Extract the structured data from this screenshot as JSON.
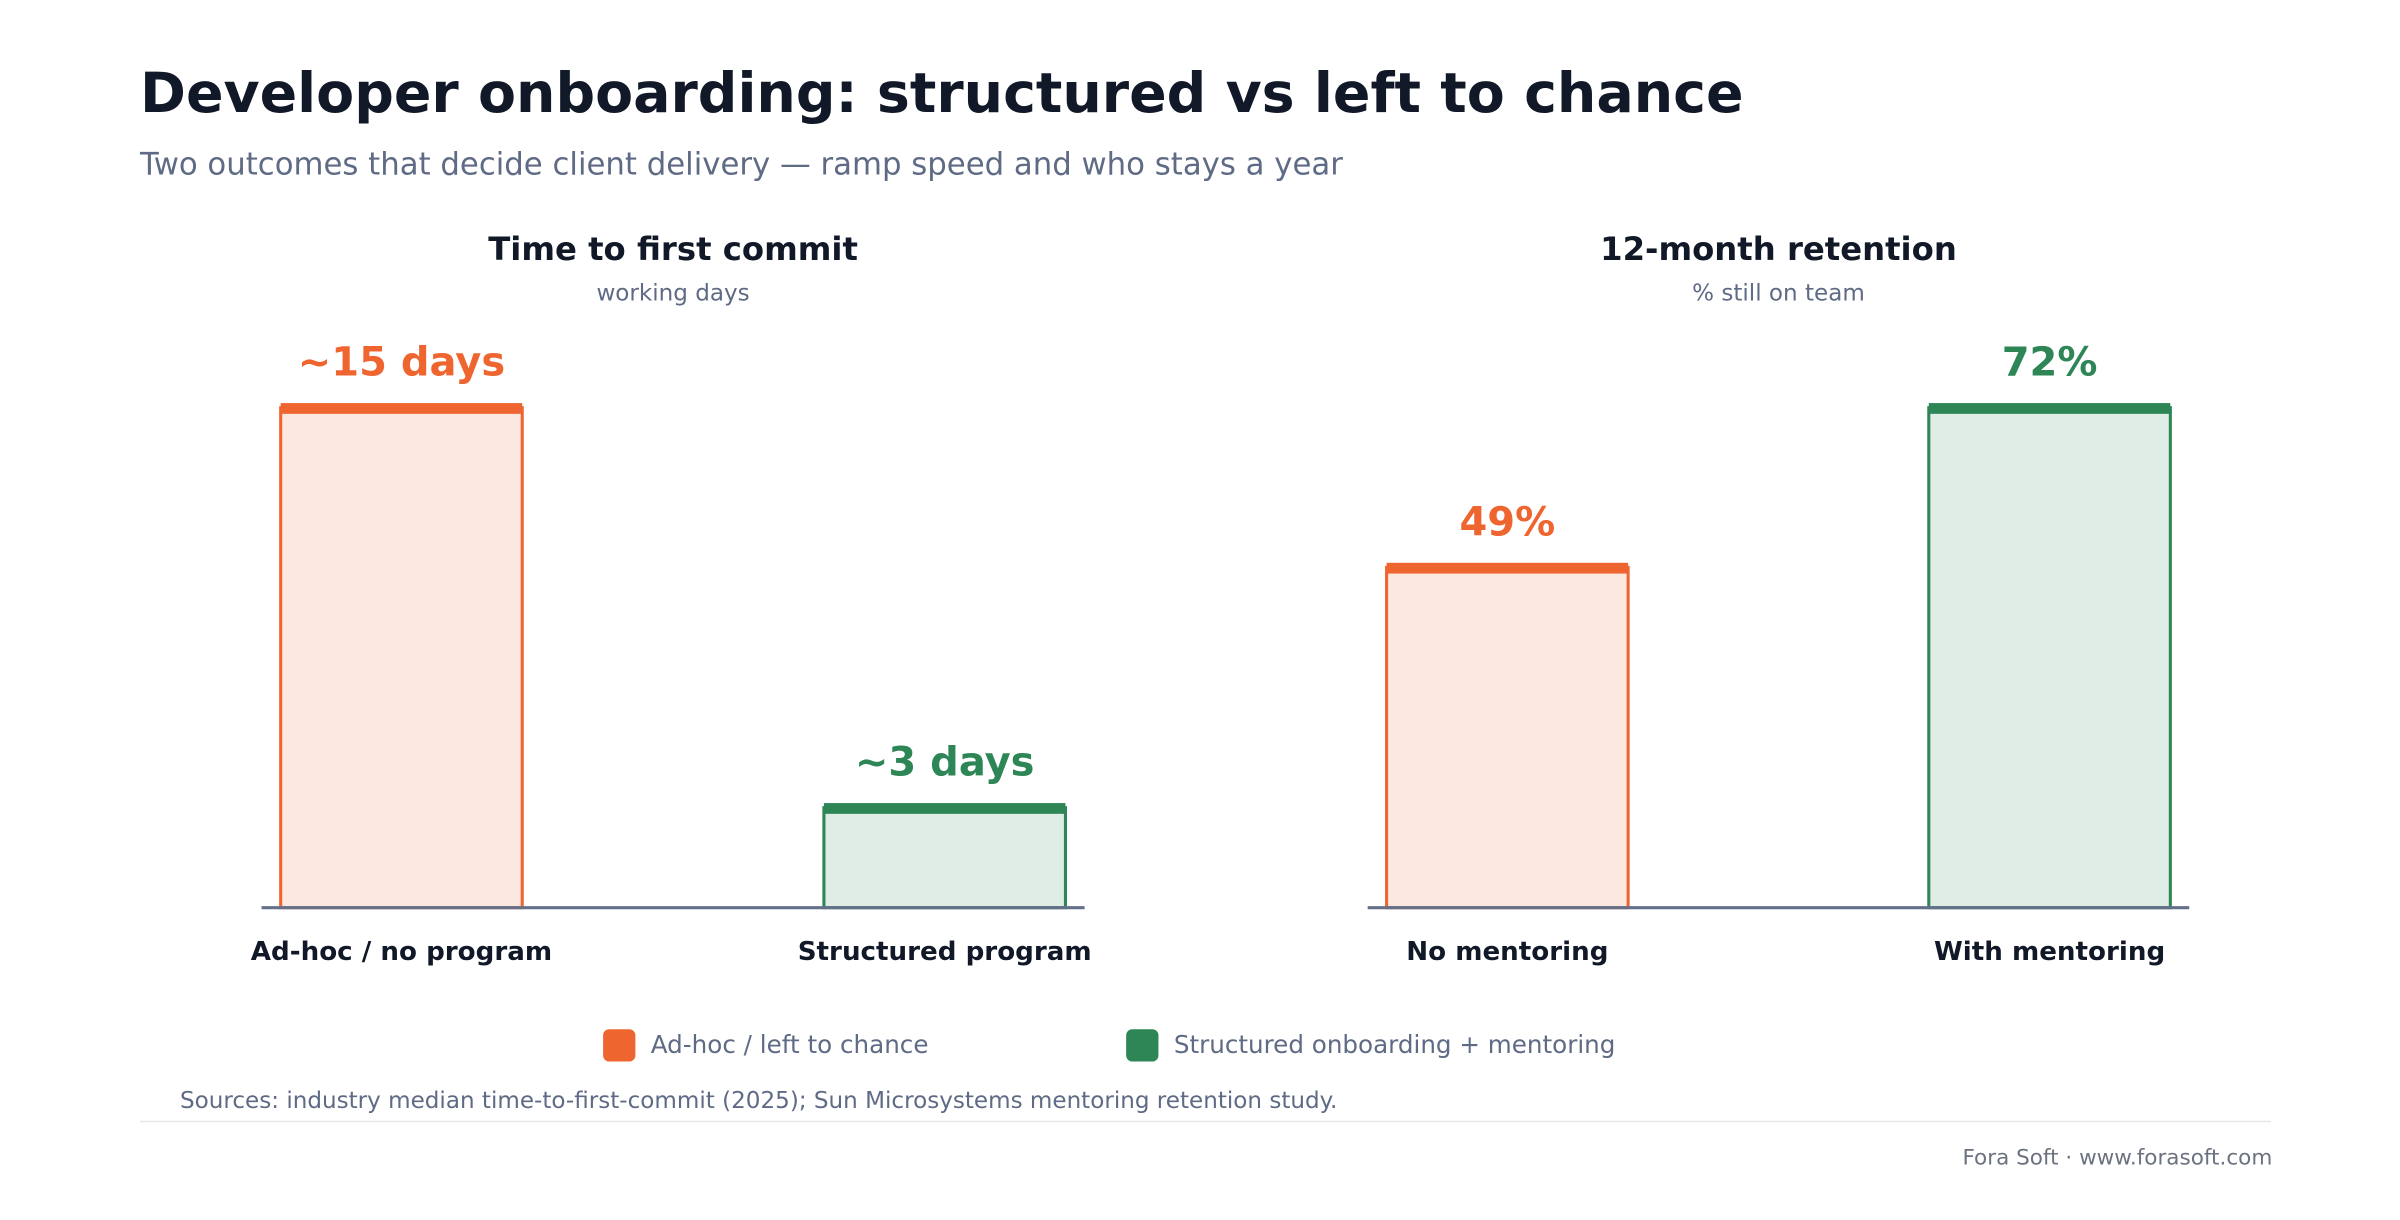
{
  "title": "Developer onboarding: structured vs left to chance",
  "subtitle": "Two outcomes that decide client delivery — ramp speed and who stays a year",
  "chart_data": [
    {
      "type": "bar",
      "title": "Time to first commit",
      "subtitle": "working days",
      "categories": [
        "Ad-hoc / no program",
        "Structured program"
      ],
      "values": [
        15,
        3
      ],
      "value_labels": [
        "~15 days",
        "~3 days"
      ],
      "colors": [
        "#ef6530",
        "#2e8656"
      ]
    },
    {
      "type": "bar",
      "title": "12-month retention",
      "subtitle": "% still on team",
      "categories": [
        "No mentoring",
        "With mentoring"
      ],
      "values": [
        49,
        72
      ],
      "value_labels": [
        "49%",
        "72%"
      ],
      "colors": [
        "#ef6530",
        "#2e8656"
      ]
    }
  ],
  "legend": [
    {
      "name": "Ad-hoc / left to chance",
      "color": "#ef6530"
    },
    {
      "name": "Structured onboarding + mentoring",
      "color": "#2e8656"
    }
  ],
  "sources": "Sources: industry median time-to-first-commit (2025); Sun Microsystems mentoring retention study.",
  "brand": "Fora Soft · www.forasoft.com"
}
